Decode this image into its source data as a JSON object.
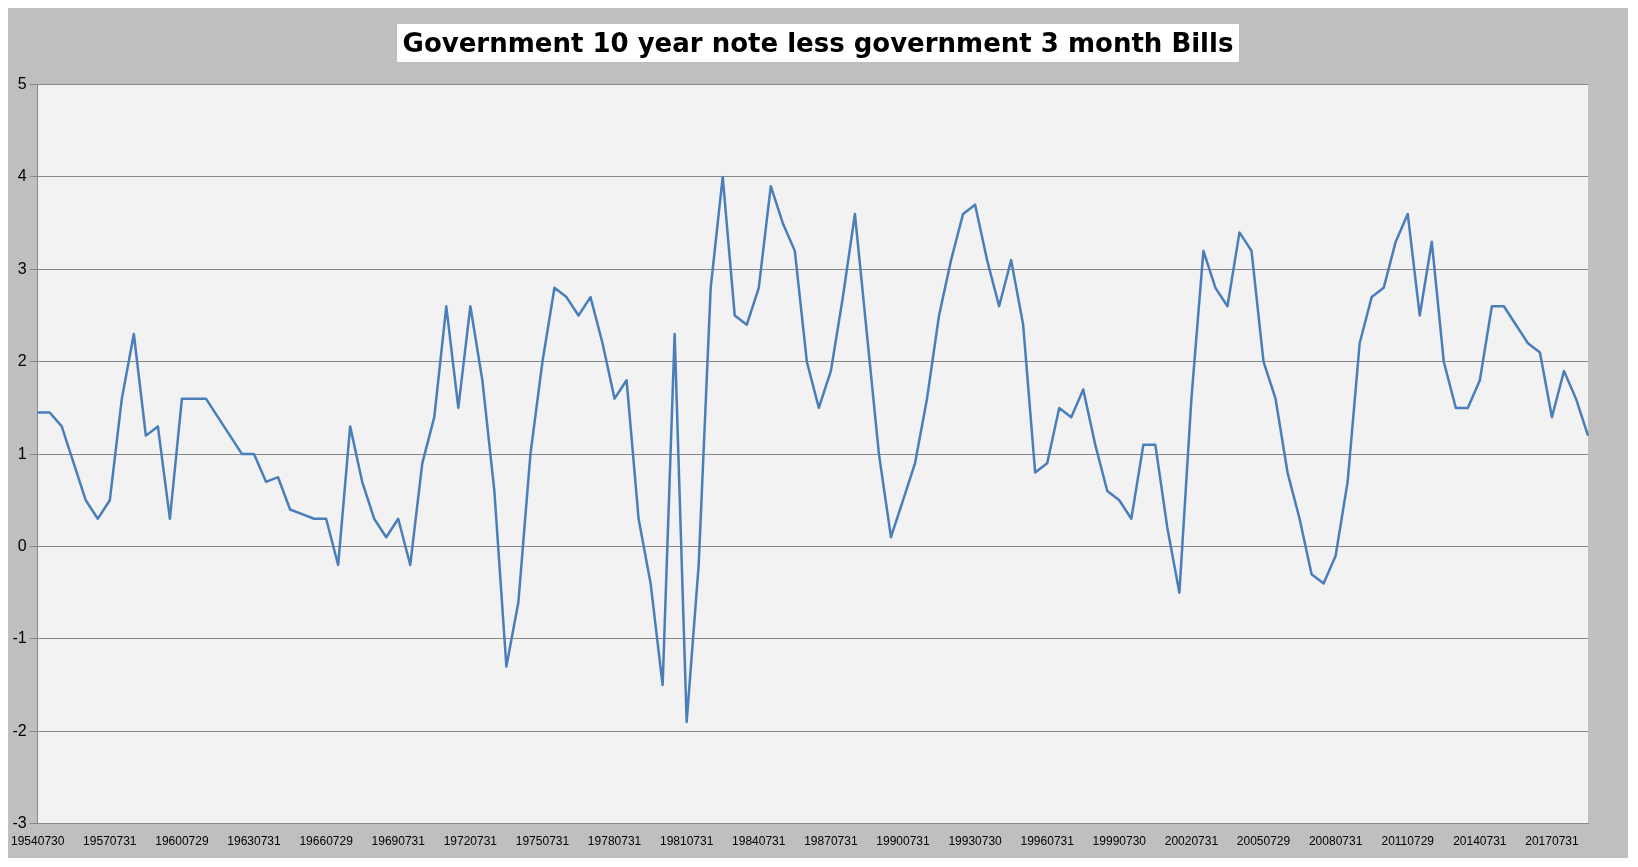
{
  "chart_data": {
    "type": "line",
    "title": "Government 10 year note less government 3 month Bills",
    "categories": [
      "19540730",
      null,
      null,
      null,
      null,
      null,
      "19570731",
      null,
      null,
      null,
      null,
      null,
      "19600729",
      null,
      null,
      null,
      null,
      null,
      "19630731",
      null,
      null,
      null,
      null,
      null,
      "19660729",
      null,
      null,
      null,
      null,
      null,
      "19690731",
      null,
      null,
      null,
      null,
      null,
      "19720731",
      null,
      null,
      null,
      null,
      null,
      "19750731",
      null,
      null,
      null,
      null,
      null,
      "19780731",
      null,
      null,
      null,
      null,
      null,
      "19810731",
      null,
      null,
      null,
      null,
      null,
      "19840731",
      null,
      null,
      null,
      null,
      null,
      "19870731",
      null,
      null,
      null,
      null,
      null,
      "19900731",
      null,
      null,
      null,
      null,
      null,
      "19930730",
      null,
      null,
      null,
      null,
      null,
      "19960731",
      null,
      null,
      null,
      null,
      null,
      "19990730",
      null,
      null,
      null,
      null,
      null,
      "20020731",
      null,
      null,
      null,
      null,
      null,
      "20050729",
      null,
      null,
      null,
      null,
      null,
      "20080731",
      null,
      null,
      null,
      null,
      null,
      "20110729",
      null,
      null,
      null,
      null,
      null,
      "20140731",
      null,
      null,
      null,
      null,
      null,
      "20170731",
      null,
      null,
      null
    ],
    "series": [
      {
        "color": "#4a7ebb",
        "values": [
          1.45,
          1.45,
          1.3,
          0.9,
          0.5,
          0.3,
          0.5,
          1.6,
          2.3,
          1.2,
          1.3,
          0.3,
          1.6,
          1.6,
          1.6,
          1.4,
          1.2,
          1.0,
          1.0,
          0.7,
          0.75,
          0.4,
          0.35,
          0.3,
          0.3,
          -0.2,
          1.3,
          0.7,
          0.3,
          0.1,
          0.3,
          -0.2,
          0.9,
          1.4,
          2.6,
          1.5,
          2.6,
          1.8,
          0.6,
          -1.3,
          -0.6,
          1.0,
          2.0,
          2.8,
          2.7,
          2.5,
          2.7,
          2.2,
          1.6,
          1.8,
          0.3,
          -0.4,
          -1.5,
          2.3,
          -1.9,
          -0.2,
          2.8,
          4.0,
          2.5,
          2.4,
          2.8,
          3.9,
          3.5,
          3.2,
          2.0,
          1.5,
          1.9,
          2.7,
          3.6,
          2.3,
          1.0,
          0.1,
          0.5,
          0.9,
          1.6,
          2.5,
          3.1,
          3.6,
          3.7,
          3.1,
          2.6,
          3.1,
          2.4,
          0.8,
          0.9,
          1.5,
          1.4,
          1.7,
          1.1,
          0.6,
          0.5,
          0.3,
          1.1,
          1.1,
          0.2,
          -0.5,
          1.6,
          3.2,
          2.8,
          2.6,
          3.4,
          3.2,
          2.0,
          1.6,
          0.8,
          0.3,
          -0.3,
          -0.4,
          -0.1,
          0.7,
          2.2,
          2.7,
          2.8,
          3.3,
          3.6,
          2.5,
          3.3,
          2.0,
          1.5,
          1.5,
          1.8,
          2.6,
          2.6,
          2.4,
          2.2,
          2.1,
          1.4,
          1.9,
          1.6,
          1.2
        ]
      }
    ],
    "ylim": [
      -3,
      5
    ],
    "yticks": [
      -3,
      -2,
      -1,
      0,
      1,
      2,
      3,
      4,
      5
    ],
    "grid": "y",
    "legend": false,
    "marker": "none",
    "line_style": "solid"
  }
}
